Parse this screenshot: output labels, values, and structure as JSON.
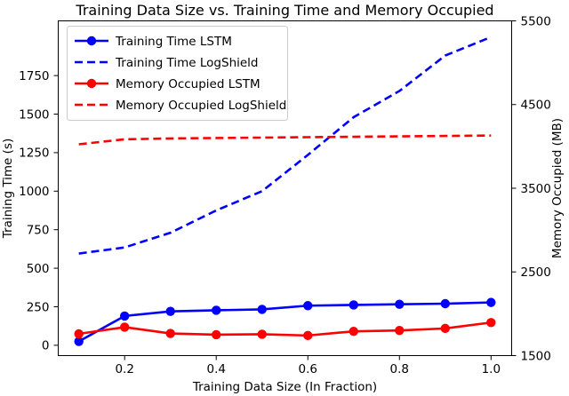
{
  "chart_data": {
    "type": "line",
    "title": "Training Data Size vs. Training Time and Memory Occupied",
    "xlabel": "Training Data Size (In Fraction)",
    "ylabel_left": "Training Time (s)",
    "ylabel_right": "Memory Occupied (MB)",
    "grid": false,
    "legend_position": "upper left",
    "x": [
      0.1,
      0.2,
      0.3,
      0.4,
      0.5,
      0.6,
      0.7,
      0.8,
      0.9,
      1.0
    ],
    "xlim": [
      0.055,
      1.045
    ],
    "x_axis": {
      "tick_values": [
        0.2,
        0.4,
        0.6,
        0.8,
        1.0
      ],
      "tick_labels": [
        "0.2",
        "0.4",
        "0.6",
        "0.8",
        "1.0"
      ],
      "color": "#000000"
    },
    "left_axis": {
      "lim": [
        -67,
        2105
      ],
      "tick_values": [
        0,
        250,
        500,
        750,
        1000,
        1250,
        1500,
        1750
      ],
      "tick_labels": [
        "0",
        "250",
        "500",
        "750",
        "1000",
        "1250",
        "1500",
        "1750"
      ],
      "color": "#0000ff"
    },
    "right_axis": {
      "lim": [
        1500,
        5500
      ],
      "tick_values": [
        1500,
        2500,
        3500,
        4500,
        5500
      ],
      "tick_labels": [
        "1500",
        "2500",
        "3500",
        "4500",
        "5500"
      ],
      "color": "#ff0000"
    },
    "series": [
      {
        "name": "Training Time LSTM",
        "axis": "left",
        "color": "#0000ff",
        "line": "solid",
        "marker": "circle",
        "values": [
          25,
          190,
          220,
          227,
          233,
          257,
          262,
          266,
          270,
          278
        ]
      },
      {
        "name": "Training Time LogShield",
        "axis": "left",
        "color": "#0000ff",
        "line": "dashed",
        "marker": "none",
        "values": [
          595,
          635,
          730,
          875,
          1000,
          1235,
          1480,
          1650,
          1880,
          2000
        ]
      },
      {
        "name": "Memory Occupied LSTM",
        "axis": "right",
        "color": "#ff0000",
        "line": "solid",
        "marker": "circle",
        "values": [
          1760,
          1840,
          1765,
          1750,
          1755,
          1740,
          1790,
          1800,
          1825,
          1895
        ]
      },
      {
        "name": "Memory Occupied LogShield",
        "axis": "right",
        "color": "#ff0000",
        "line": "dashed",
        "marker": "none",
        "values": [
          4025,
          4085,
          4095,
          4100,
          4105,
          4110,
          4115,
          4120,
          4125,
          4130
        ]
      }
    ]
  }
}
